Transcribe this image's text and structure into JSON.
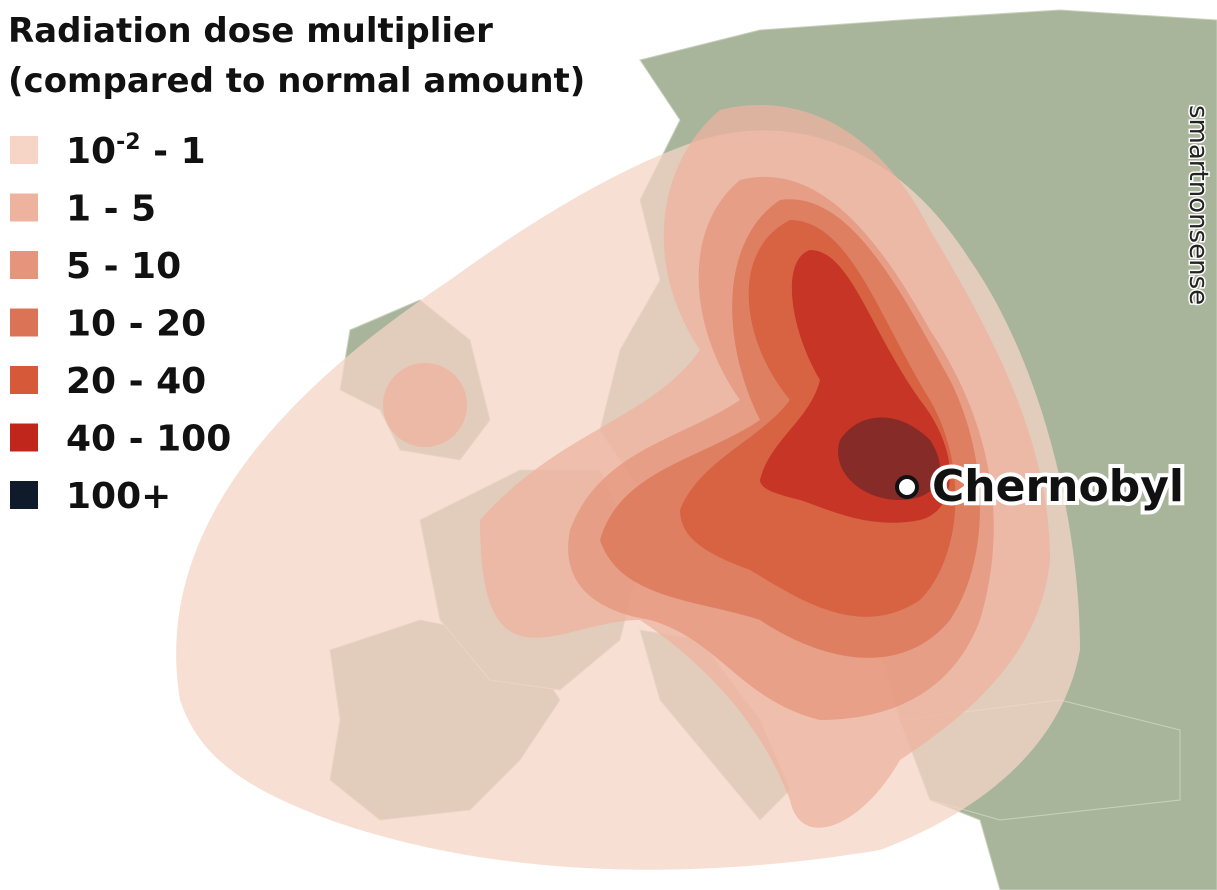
{
  "title": [
    "Radiation dose multiplier",
    "(compared to normal amount)"
  ],
  "legend": [
    {
      "label": "10",
      "sup": "-2",
      "suffix": " - 1",
      "color": "#f6d4c6"
    },
    {
      "label": "1 - 5",
      "color": "#eeb39f"
    },
    {
      "label": "5 - 10",
      "color": "#e6957c"
    },
    {
      "label": "10 - 20",
      "color": "#db7456"
    },
    {
      "label": "20 - 40",
      "color": "#d65a39"
    },
    {
      "label": "40 - 100",
      "color": "#c0261c"
    },
    {
      "label": "100+",
      "color": "#0f1a2b"
    }
  ],
  "marker": {
    "label": "Chernobyl"
  },
  "watermark": "smartnonsense"
}
